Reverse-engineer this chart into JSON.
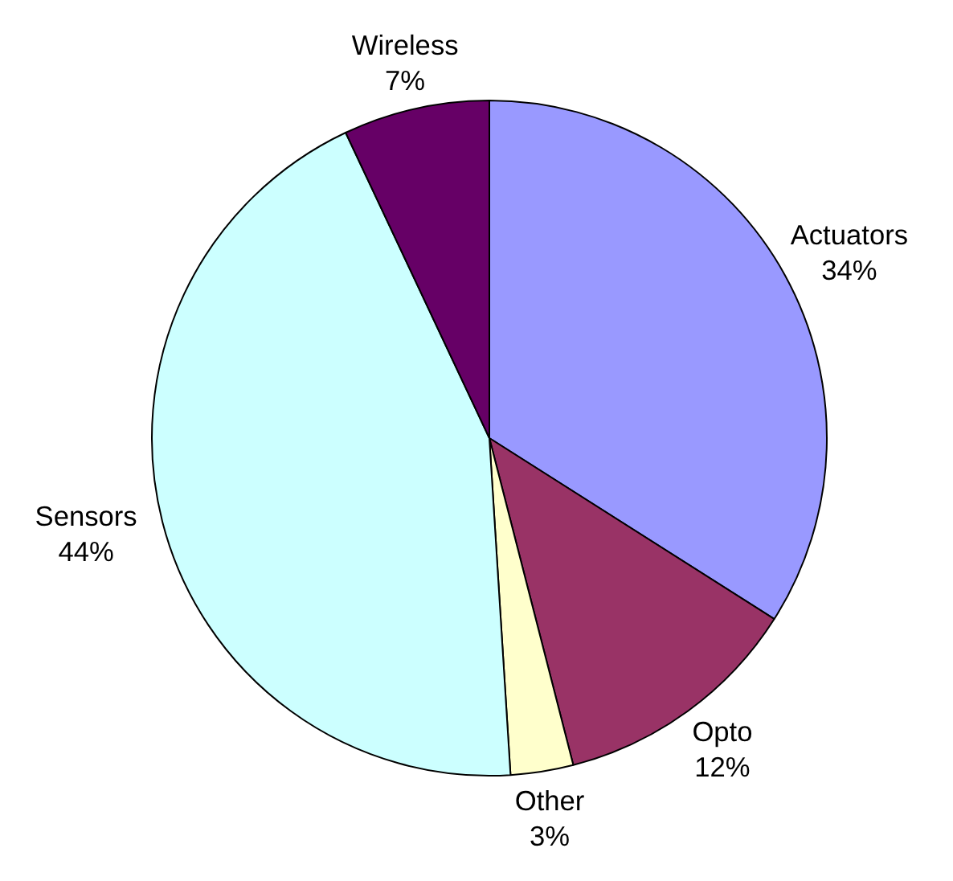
{
  "chart_data": {
    "type": "pie",
    "categories": [
      "Actuators",
      "Opto",
      "Other",
      "Sensors",
      "Wireless"
    ],
    "values": [
      34,
      12,
      3,
      44,
      7
    ],
    "colors": [
      "#9999ff",
      "#993366",
      "#ffffcc",
      "#ccffff",
      "#660066"
    ],
    "value_labels": [
      "34%",
      "12%",
      "3%",
      "44%",
      "7%"
    ],
    "legend": false
  }
}
